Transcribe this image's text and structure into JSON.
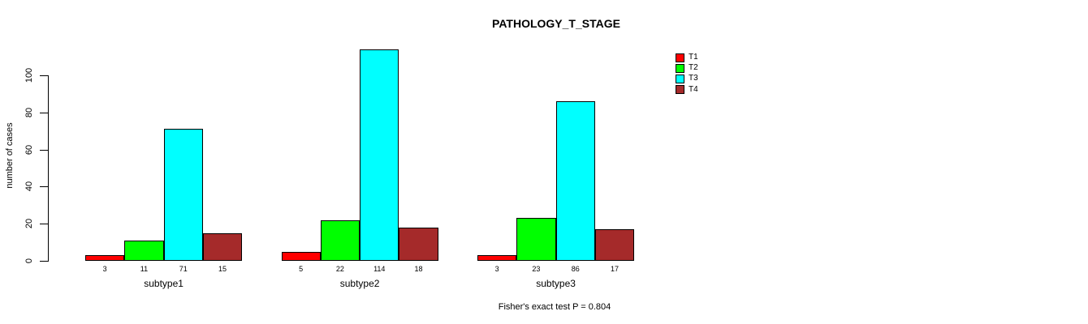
{
  "chart_data": {
    "type": "bar",
    "title": "PATHOLOGY_T_STAGE",
    "ylabel": "number of cases",
    "xlabel": "",
    "categories": [
      "subtype1",
      "subtype2",
      "subtype3"
    ],
    "series": [
      {
        "name": "T1",
        "color": "#ff0000",
        "values": [
          3,
          5,
          3
        ]
      },
      {
        "name": "T2",
        "color": "#00ff00",
        "values": [
          11,
          22,
          23
        ]
      },
      {
        "name": "T3",
        "color": "#00ffff",
        "values": [
          71,
          114,
          86
        ]
      },
      {
        "name": "T4",
        "color": "#a52a2a",
        "values": [
          15,
          18,
          17
        ]
      }
    ],
    "bar_value_labels": [
      [
        "3",
        "11",
        "71",
        "15"
      ],
      [
        "5",
        "22",
        "114",
        "18"
      ],
      [
        "3",
        "23",
        "86",
        "17"
      ]
    ],
    "yticks": [
      0,
      20,
      40,
      60,
      80,
      100
    ],
    "ylim": [
      0,
      114
    ],
    "grid": false,
    "legend_position": "right-top",
    "legend_entries": [
      "T1",
      "T2",
      "T3",
      "T4"
    ],
    "annotation": "Fisher's exact test P = 0.804",
    "axis_color": "#000000",
    "bar_border_color": "#000000",
    "background_color": "#ffffff"
  }
}
